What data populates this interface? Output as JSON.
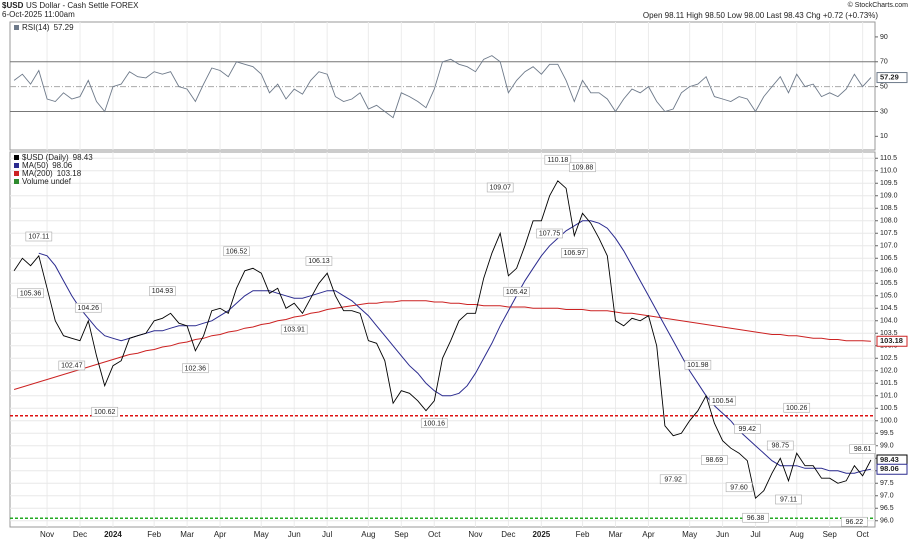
{
  "header": {
    "symbol": "$USD",
    "name": "US Dollar - Cash Settle FOREX",
    "date": "6-Oct-2025 11:00am",
    "quote": "Open 98.11  High 98.50  Low 98.00  Last 98.43  Chg +0.72 (+0.73%)",
    "credit": "© StockCharts.com"
  },
  "chart_data": [
    {
      "type": "line",
      "title": "RSI(14)",
      "series": [
        {
          "name": "RSI(14)",
          "color": "#6e7a8a",
          "values": [
            55,
            60,
            52,
            63,
            40,
            38,
            45,
            40,
            42,
            55,
            38,
            30,
            50,
            52,
            62,
            58,
            57,
            62,
            60,
            62,
            50,
            48,
            38,
            52,
            65,
            63,
            58,
            70,
            68,
            66,
            60,
            45,
            52,
            40,
            48,
            44,
            55,
            62,
            60,
            42,
            38,
            40,
            45,
            32,
            35,
            30,
            25,
            45,
            42,
            38,
            33,
            48,
            70,
            72,
            68,
            66,
            62,
            72,
            75,
            70,
            45,
            55,
            62,
            66,
            60,
            68,
            68,
            55,
            38,
            55,
            45,
            45,
            40,
            30,
            40,
            48,
            45,
            50,
            38,
            30,
            32,
            45,
            50,
            52,
            58,
            42,
            40,
            38,
            42,
            40,
            30,
            42,
            50,
            58,
            45,
            60,
            50,
            52,
            42,
            45,
            42,
            48,
            60,
            50,
            57.29
          ]
        }
      ],
      "ylim": [
        -1,
        102
      ],
      "yticks": [
        10,
        30,
        50,
        70,
        90
      ],
      "ref_lines": [
        {
          "value": 70,
          "style": "solid"
        },
        {
          "value": 50,
          "style": "dashdot"
        },
        {
          "value": 30,
          "style": "solid"
        }
      ]
    },
    {
      "type": "line",
      "title": "$USD (Daily)",
      "categories": [
        null,
        null,
        null,
        null,
        "Nov",
        null,
        null,
        null,
        "Dec",
        null,
        null,
        null,
        "2024",
        null,
        null,
        null,
        null,
        "Feb",
        null,
        null,
        null,
        "Mar",
        null,
        null,
        null,
        "Apr",
        null,
        null,
        null,
        null,
        "May",
        null,
        null,
        null,
        "Jun",
        null,
        null,
        null,
        "Jul",
        null,
        null,
        null,
        null,
        "Aug",
        null,
        null,
        null,
        "Sep",
        null,
        null,
        null,
        "Oct",
        null,
        null,
        null,
        null,
        "Nov",
        null,
        null,
        null,
        "Dec",
        null,
        null,
        null,
        "2025",
        null,
        null,
        null,
        null,
        "Feb",
        null,
        null,
        null,
        "Mar",
        null,
        null,
        null,
        "Apr",
        null,
        null,
        null,
        null,
        "May",
        null,
        null,
        null,
        "Jun",
        null,
        null,
        null,
        "Jul",
        null,
        null,
        null,
        null,
        "Aug",
        null,
        null,
        null,
        "Sep",
        null,
        null,
        null,
        "Oct",
        null
      ],
      "series": [
        {
          "name": "$USD (Daily)",
          "color": "#000000",
          "values": [
            106.0,
            106.5,
            106.2,
            106.6,
            105.3,
            104.0,
            103.4,
            103.3,
            103.2,
            104.0,
            102.6,
            101.4,
            102.2,
            102.4,
            103.3,
            103.4,
            103.5,
            104.0,
            104.1,
            104.3,
            103.9,
            103.8,
            102.8,
            103.4,
            104.4,
            104.5,
            104.3,
            105.3,
            106.0,
            106.1,
            105.9,
            105.1,
            105.3,
            104.5,
            104.7,
            104.3,
            104.9,
            105.5,
            105.9,
            105.0,
            104.4,
            104.4,
            104.3,
            103.2,
            103.1,
            102.4,
            100.7,
            101.2,
            101.1,
            100.8,
            100.4,
            100.8,
            102.5,
            103.2,
            104.0,
            104.3,
            104.3,
            105.7,
            106.7,
            107.5,
            105.8,
            106.1,
            107.0,
            108.0,
            108.0,
            109.0,
            109.6,
            109.3,
            107.4,
            108.3,
            107.9,
            107.3,
            106.6,
            104.0,
            103.8,
            104.1,
            104.0,
            104.2,
            103.0,
            99.8,
            99.4,
            99.5,
            100.0,
            100.4,
            101.0,
            99.9,
            99.2,
            98.9,
            98.7,
            98.4,
            96.9,
            97.2,
            97.9,
            98.5,
            97.6,
            98.7,
            98.2,
            98.2,
            97.7,
            97.7,
            97.5,
            97.6,
            98.2,
            97.8,
            98.43
          ]
        },
        {
          "name": "MA(50)",
          "color": "#2b2b8f",
          "values": [
            null,
            null,
            null,
            106.7,
            106.6,
            106.2,
            105.6,
            105.0,
            104.5,
            104.1,
            103.7,
            103.4,
            103.3,
            103.2,
            103.3,
            103.4,
            103.5,
            103.6,
            103.6,
            103.7,
            103.8,
            103.8,
            103.8,
            103.9,
            104.0,
            104.2,
            104.4,
            104.7,
            105.0,
            105.2,
            105.2,
            105.2,
            105.1,
            105.0,
            104.9,
            104.9,
            105.0,
            105.1,
            105.2,
            105.2,
            105.0,
            104.8,
            104.5,
            104.2,
            103.8,
            103.4,
            103.0,
            102.6,
            102.2,
            101.9,
            101.5,
            101.2,
            101.0,
            101.0,
            101.1,
            101.4,
            101.9,
            102.5,
            103.1,
            103.8,
            104.4,
            105.0,
            105.6,
            106.1,
            106.6,
            107.0,
            107.3,
            107.6,
            107.8,
            108.0,
            108.0,
            107.9,
            107.7,
            107.3,
            106.8,
            106.2,
            105.6,
            105.0,
            104.4,
            103.8,
            103.2,
            102.6,
            102.0,
            101.5,
            101.0,
            100.6,
            100.3,
            100.0,
            99.6,
            99.3,
            99.0,
            98.7,
            98.4,
            98.2,
            98.2,
            98.2,
            98.1,
            98.1,
            98.1,
            98.0,
            98.0,
            97.9,
            97.9,
            98.0,
            98.06
          ]
        },
        {
          "name": "MA(200)",
          "color": "#cc2222",
          "values": [
            101.25,
            101.35,
            101.45,
            101.55,
            101.65,
            101.75,
            101.85,
            101.95,
            102.05,
            102.15,
            102.25,
            102.35,
            102.45,
            102.55,
            102.65,
            102.7,
            102.8,
            102.85,
            102.95,
            103.0,
            103.1,
            103.15,
            103.25,
            103.3,
            103.4,
            103.45,
            103.55,
            103.6,
            103.7,
            103.75,
            103.85,
            103.9,
            104.0,
            104.05,
            104.15,
            104.2,
            104.3,
            104.35,
            104.45,
            104.5,
            104.55,
            104.6,
            104.65,
            104.7,
            104.7,
            104.75,
            104.75,
            104.8,
            104.8,
            104.8,
            104.8,
            104.75,
            104.75,
            104.7,
            104.7,
            104.65,
            104.65,
            104.6,
            104.6,
            104.6,
            104.55,
            104.55,
            104.55,
            104.5,
            104.5,
            104.5,
            104.5,
            104.45,
            104.45,
            104.45,
            104.4,
            104.4,
            104.4,
            104.35,
            104.3,
            104.3,
            104.25,
            104.2,
            104.15,
            104.1,
            104.05,
            104.0,
            103.95,
            103.9,
            103.85,
            103.8,
            103.75,
            103.7,
            103.65,
            103.6,
            103.55,
            103.5,
            103.45,
            103.45,
            103.4,
            103.4,
            103.35,
            103.3,
            103.3,
            103.25,
            103.25,
            103.2,
            103.2,
            103.2,
            103.18
          ]
        }
      ],
      "volume_label": "Volume undef",
      "volume_color": "#2e8b2e",
      "ylim": [
        95.75,
        110.75
      ],
      "yticks": [
        {
          "value": 96,
          "label": "96.0"
        },
        96.5,
        {
          "value": 97,
          "label": "97.0"
        },
        97.5,
        {
          "value": 98,
          "label": "98.0"
        },
        98.5,
        {
          "value": 99,
          "label": "99.0"
        },
        99.5,
        {
          "value": 100,
          "label": "100.0"
        },
        100.5,
        {
          "value": 101,
          "label": "101.0"
        },
        101.5,
        {
          "value": 102,
          "label": "102.0"
        },
        102.5,
        {
          "value": 103,
          "label": "103.0"
        },
        103.5,
        {
          "value": 104,
          "label": "104.0"
        },
        104.5,
        {
          "value": 105,
          "label": "105.0"
        },
        105.5,
        {
          "value": 106,
          "label": "106.0"
        },
        106.5,
        {
          "value": 107,
          "label": "107.0"
        },
        107.5,
        {
          "value": 108,
          "label": "108.0"
        },
        108.5,
        {
          "value": 109,
          "label": "109.0"
        },
        109.5,
        {
          "value": 110,
          "label": "110.0"
        },
        110.5
      ],
      "grid": true,
      "levels": [
        {
          "value": 100.2,
          "color": "#dd1111"
        },
        {
          "value": 96.1,
          "color": "#22aa22"
        }
      ],
      "annotations": [
        {
          "label": "107.11",
          "value": 107.11,
          "index": 3
        },
        {
          "label": "105.36",
          "value": 105.36,
          "index": 2
        },
        {
          "label": "104.26",
          "value": 104.26,
          "index": 9
        },
        {
          "label": "102.47",
          "value": 102.47,
          "index": 7
        },
        {
          "label": "100.62",
          "value": 100.62,
          "index": 11
        },
        {
          "label": "104.93",
          "value": 104.93,
          "index": 18
        },
        {
          "label": "102.36",
          "value": 102.36,
          "index": 22
        },
        {
          "label": "106.52",
          "value": 106.52,
          "index": 27
        },
        {
          "label": "103.91",
          "value": 103.91,
          "index": 34
        },
        {
          "label": "106.13",
          "value": 106.13,
          "index": 37
        },
        {
          "label": "100.16",
          "value": 100.16,
          "index": 51
        },
        {
          "label": "109.07",
          "value": 109.07,
          "index": 59
        },
        {
          "label": "105.42",
          "value": 105.42,
          "index": 61
        },
        {
          "label": "110.18",
          "value": 110.18,
          "index": 66
        },
        {
          "label": "107.75",
          "value": 107.75,
          "index": 65
        },
        {
          "label": "109.88",
          "value": 109.88,
          "index": 69
        },
        {
          "label": "106.97",
          "value": 106.97,
          "index": 68
        },
        {
          "label": "101.98",
          "value": 101.98,
          "index": 83
        },
        {
          "label": "97.92",
          "value": 97.92,
          "index": 80
        },
        {
          "label": "100.54",
          "value": 100.54,
          "index": 86
        },
        {
          "label": "98.69",
          "value": 98.69,
          "index": 85
        },
        {
          "label": "99.42",
          "value": 99.42,
          "index": 89
        },
        {
          "label": "97.60",
          "value": 97.6,
          "index": 88
        },
        {
          "label": "97.11",
          "value": 97.11,
          "index": 94
        },
        {
          "label": "98.75",
          "value": 98.75,
          "index": 93
        },
        {
          "label": "100.26",
          "value": 100.26,
          "index": 95
        },
        {
          "label": "96.38",
          "value": 96.38,
          "index": 90
        },
        {
          "label": "98.61",
          "value": 98.61,
          "index": 103
        },
        {
          "label": "96.22",
          "value": 96.22,
          "index": 102
        }
      ]
    }
  ]
}
